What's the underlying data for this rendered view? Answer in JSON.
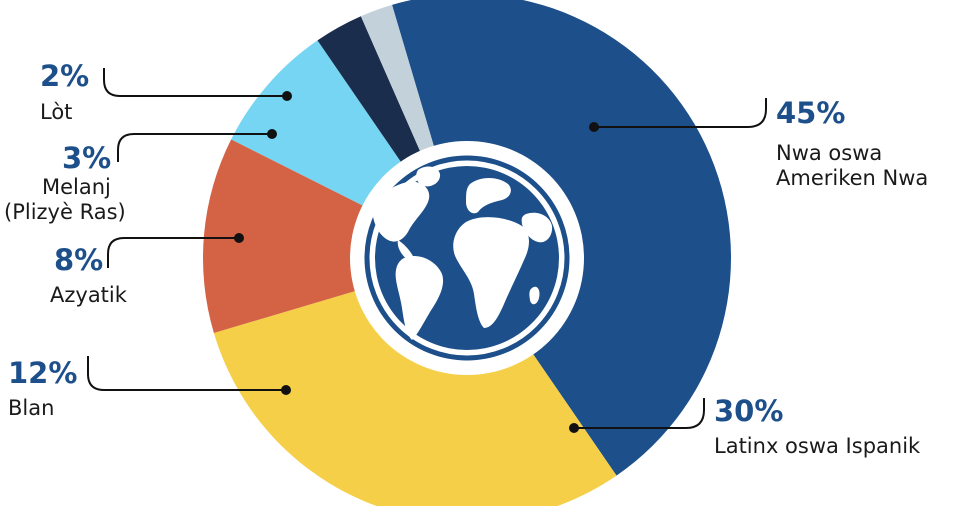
{
  "chart_data": {
    "type": "pie",
    "donut": true,
    "center_icon": "globe-icon",
    "slices": [
      {
        "name": "Nwa oswa Ameriken Nwa",
        "label_lines": [
          "Nwa oswa",
          "Ameriken Nwa"
        ],
        "value": 45,
        "value_label": "45%",
        "color": "#1d4f8a"
      },
      {
        "name": "Latinx oswa Ispanik",
        "label_lines": [
          "Latinx oswa Ispanik"
        ],
        "value": 30,
        "value_label": "30%",
        "color": "#f6cf49"
      },
      {
        "name": "Blan",
        "label_lines": [
          "Blan"
        ],
        "value": 12,
        "value_label": "12%",
        "color": "#d46346"
      },
      {
        "name": "Azyatik",
        "label_lines": [
          "Azyatik"
        ],
        "value": 8,
        "value_label": "8%",
        "color": "#75d5f2"
      },
      {
        "name": "Melanj (Plizyè Ras)",
        "label_lines": [
          "Melanj",
          "(Plizyè Ras)"
        ],
        "value": 3,
        "value_label": "3%",
        "color": "#1b2d4d"
      },
      {
        "name": "Lòt",
        "label_lines": [
          "Lòt"
        ],
        "value": 2,
        "value_label": "2%",
        "color": "#c3d2da"
      }
    ]
  }
}
